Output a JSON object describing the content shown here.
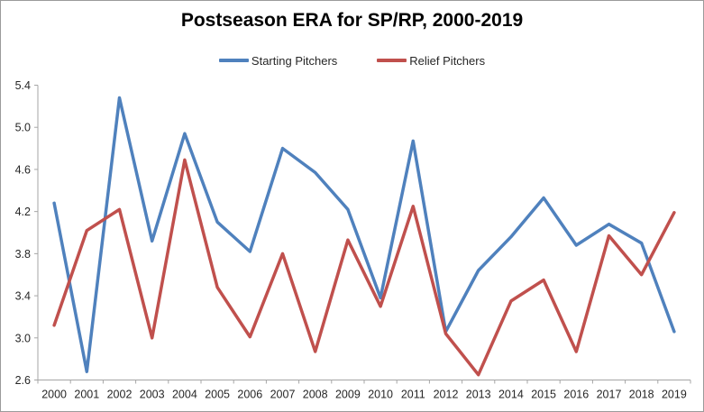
{
  "chart_data": {
    "type": "line",
    "title": "Postseason ERA for SP/RP, 2000-2019",
    "categories": [
      "2000",
      "2001",
      "2002",
      "2003",
      "2004",
      "2005",
      "2006",
      "2007",
      "2008",
      "2009",
      "2010",
      "2011",
      "2012",
      "2013",
      "2014",
      "2015",
      "2016",
      "2017",
      "2018",
      "2019"
    ],
    "series": [
      {
        "name": "Starting Pitchers",
        "color": "#4F81BD",
        "values": [
          4.28,
          2.68,
          5.28,
          3.92,
          4.94,
          4.1,
          3.82,
          4.8,
          4.57,
          4.22,
          3.38,
          4.87,
          3.06,
          3.64,
          3.96,
          4.33,
          3.88,
          4.08,
          3.9,
          3.06
        ]
      },
      {
        "name": "Relief Pitchers",
        "color": "#C0504D",
        "values": [
          3.12,
          4.02,
          4.22,
          3.0,
          4.69,
          3.48,
          3.01,
          3.8,
          2.87,
          3.93,
          3.3,
          4.25,
          3.04,
          2.65,
          3.35,
          3.55,
          2.87,
          3.97,
          3.6,
          4.19
        ]
      }
    ],
    "xlabel": "",
    "ylabel": "",
    "ylim": [
      2.6,
      5.4
    ],
    "yticks": [
      2.6,
      3.0,
      3.4,
      3.8,
      4.2,
      4.6,
      5.0,
      5.4
    ],
    "grid": false,
    "legend_position": "top",
    "axis_color": "#A6A6A6",
    "tick_label_color": "#262626",
    "line_width": 3.5
  }
}
